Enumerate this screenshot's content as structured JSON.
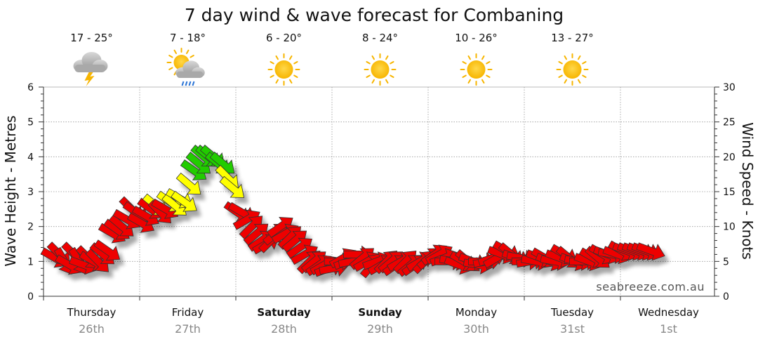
{
  "chart_data": {
    "type": "scatter",
    "title": "7 day wind & wave forecast for Combaning",
    "ylabel_left": "Wave Height - Metres",
    "ylabel_right": "Wind Speed - Knots",
    "ylim_left": [
      0,
      6
    ],
    "ylim_right": [
      0,
      30
    ],
    "yticks_left": [
      "0",
      "1",
      "2",
      "3",
      "4",
      "5",
      "6"
    ],
    "yticks_right": [
      "0",
      "5",
      "10",
      "15",
      "20",
      "25",
      "30"
    ],
    "grid": true,
    "days": [
      {
        "name": "Thursday",
        "date": "26th",
        "bold": false
      },
      {
        "name": "Friday",
        "date": "27th",
        "bold": false
      },
      {
        "name": "Saturday",
        "date": "28th",
        "bold": true
      },
      {
        "name": "Sunday",
        "date": "29th",
        "bold": true
      },
      {
        "name": "Monday",
        "date": "30th",
        "bold": false
      },
      {
        "name": "Tuesday",
        "date": "31st",
        "bold": false
      },
      {
        "name": "Wednesday",
        "date": "1st",
        "bold": false
      }
    ],
    "forecast": [
      {
        "temp": "17 - 25°",
        "icon": "storm-cloud-icon"
      },
      {
        "temp": "7 - 18°",
        "icon": "sun-cloud-rain-icon"
      },
      {
        "temp": "6 - 20°",
        "icon": "sun-icon"
      },
      {
        "temp": "8 - 24°",
        "icon": "sun-icon"
      },
      {
        "temp": "10 - 26°",
        "icon": "sun-icon"
      },
      {
        "temp": "13 - 27°",
        "icon": "sun-icon"
      }
    ],
    "series": [
      {
        "x_days": [
          0.0,
          0.05,
          0.1,
          0.15,
          0.2,
          0.25,
          0.3,
          0.35,
          0.4,
          0.45,
          0.5,
          0.55,
          0.6,
          0.65,
          0.7,
          0.75,
          0.8,
          0.85,
          0.9,
          0.95,
          1.0,
          1.05,
          1.1,
          1.15,
          1.2,
          1.25,
          1.3,
          1.35,
          1.4,
          1.45,
          1.5,
          1.55,
          1.6,
          1.65,
          1.7,
          1.75,
          1.8,
          1.85,
          1.9,
          1.95,
          2.0,
          2.05,
          2.1,
          2.15,
          2.2,
          2.25,
          2.3,
          2.35,
          2.4,
          2.45,
          2.5,
          2.55,
          2.6,
          2.65,
          2.7,
          2.75,
          2.8,
          2.85,
          2.9,
          2.95,
          3.0,
          3.05,
          3.1,
          3.15,
          3.2,
          3.25,
          3.3,
          3.35,
          3.4,
          3.45,
          3.5,
          3.55,
          3.6,
          3.65,
          3.7,
          3.75,
          3.8,
          3.85,
          3.9,
          3.95,
          4.0,
          4.05,
          4.1,
          4.15,
          4.2,
          4.25,
          4.3,
          4.35,
          4.4,
          4.45,
          4.5,
          4.55,
          4.6,
          4.65,
          4.7,
          4.75,
          4.8,
          4.85,
          4.9,
          4.95,
          5.0,
          5.05,
          5.1,
          5.15,
          5.2,
          5.25,
          5.3,
          5.35,
          5.4,
          5.45,
          5.5,
          5.55,
          5.6,
          5.65,
          5.7,
          5.75,
          5.8,
          5.85,
          5.9,
          5.95,
          6.0,
          6.05,
          6.1,
          6.15,
          6.2
        ],
        "wind_knots": [
          5.5,
          6,
          5,
          4.5,
          6,
          5,
          4.5,
          5.5,
          5,
          5,
          6,
          6.5,
          9,
          9.5,
          10,
          11,
          12.5,
          12,
          10.5,
          11.5,
          12.5,
          13,
          12,
          12.5,
          13.5,
          13,
          14,
          13.5,
          16,
          18,
          19,
          20,
          20,
          20,
          19,
          19,
          17,
          15.5,
          12,
          12,
          11,
          10,
          9,
          8,
          7.5,
          8,
          9,
          10,
          9,
          8.5,
          8,
          7,
          6,
          5,
          5,
          4.5,
          4.5,
          4,
          4,
          5,
          5.5,
          5,
          5,
          6,
          5.5,
          5,
          4.5,
          5,
          4.5,
          5,
          5,
          4.5,
          5,
          5,
          4.5,
          4.5,
          5,
          5,
          5.5,
          6,
          6,
          5.5,
          5,
          5,
          4.5,
          5,
          5,
          5,
          4.5,
          5,
          5,
          5.5,
          5.5,
          6,
          6.5,
          6,
          5.5,
          5.5,
          5,
          5,
          5,
          5.5,
          5.5,
          5,
          5,
          5.5,
          6,
          5.5,
          5,
          5,
          5,
          5,
          5.5,
          5.5,
          6,
          6,
          6,
          6,
          6.5,
          6.5,
          6.5,
          6.5,
          6.5,
          6.5,
          6.5
        ],
        "direction_deg_to": [
          30,
          45,
          60,
          30,
          45,
          60,
          20,
          45,
          30,
          45,
          40,
          35,
          30,
          35,
          40,
          30,
          45,
          35,
          30,
          30,
          35,
          40,
          45,
          30,
          35,
          40,
          30,
          35,
          40,
          35,
          40,
          40,
          40,
          40,
          40,
          40,
          45,
          40,
          35,
          30,
          -30,
          -45,
          -40,
          -35,
          -30,
          -45,
          -40,
          -35,
          -30,
          -45,
          -40,
          -35,
          -30,
          -45,
          -40,
          -35,
          -30,
          -20,
          -10,
          0,
          -30,
          -20,
          -10,
          0,
          -40,
          -30,
          -50,
          -20,
          -30,
          -45,
          -40,
          -35,
          -30,
          -45,
          -40,
          -35,
          -30,
          -45,
          -40,
          -35,
          -30,
          -20,
          0,
          10,
          20,
          30,
          40,
          20,
          10,
          0,
          -10,
          -20,
          -30,
          20,
          30,
          40,
          20,
          10,
          0,
          -10,
          10,
          20,
          30,
          20,
          10,
          20,
          30,
          40,
          20,
          10,
          0,
          20,
          30,
          40,
          30,
          20,
          10,
          20,
          30,
          20,
          20,
          20,
          20,
          20,
          20
        ]
      }
    ],
    "colour_scale": [
      {
        "max_knots": 12.5,
        "colour": "#ee0000"
      },
      {
        "max_knots": 17.5,
        "colour": "#ffff00"
      },
      {
        "max_knots": 30,
        "colour": "#22cc00"
      }
    ],
    "watermark": "seabreeze.com.au"
  }
}
